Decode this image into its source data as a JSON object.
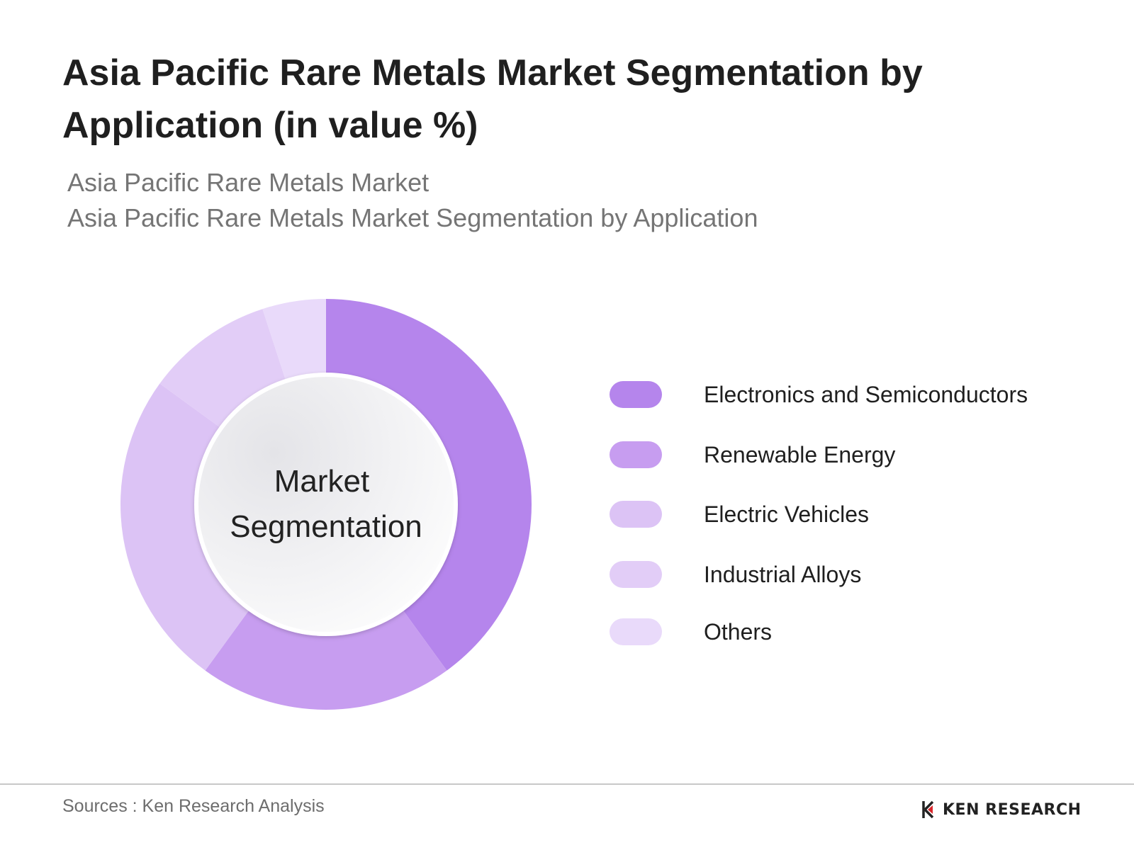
{
  "header": {
    "title": "Asia Pacific Rare Metals Market Segmentation by Application (in value %)",
    "subtitle_line1": "Asia Pacific Rare Metals Market",
    "subtitle_line2": "Asia Pacific Rare Metals Market Segmentation by Application"
  },
  "chart_data": {
    "type": "pie",
    "variant": "donut",
    "center_label": [
      "Market",
      "Segmentation"
    ],
    "legend_position": "right",
    "series": [
      {
        "name": "Electronics and Semiconductors",
        "value": 40,
        "color": "#b585ec"
      },
      {
        "name": "Renewable Energy",
        "value": 20,
        "color": "#c79df0"
      },
      {
        "name": "Electric Vehicles",
        "value": 25,
        "color": "#dcc3f5"
      },
      {
        "name": "Industrial Alloys",
        "value": 10,
        "color": "#e2cdf7"
      },
      {
        "name": "Others",
        "value": 5,
        "color": "#e9dafa"
      }
    ]
  },
  "footer": {
    "sources": "Sources : Ken Research Analysis",
    "brand": "KEN RESEARCH"
  }
}
